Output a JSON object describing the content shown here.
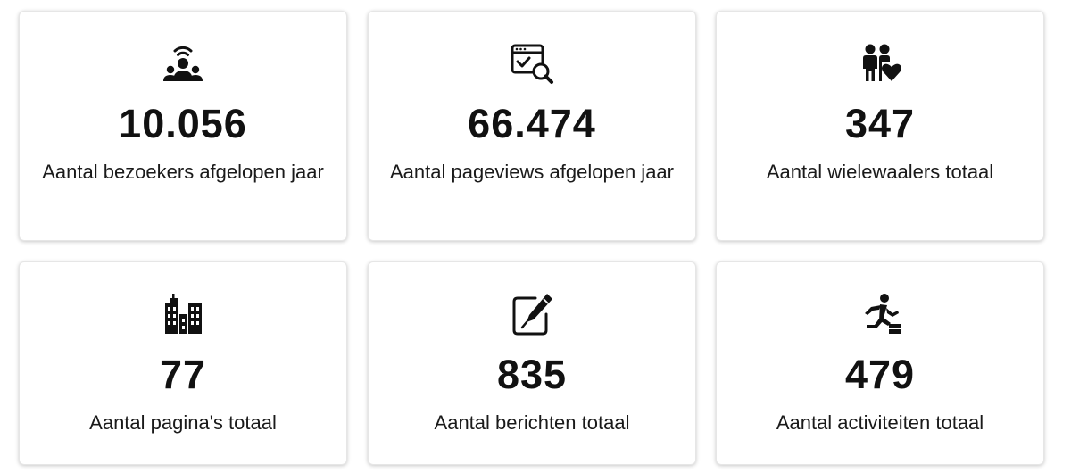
{
  "colors": {
    "text": "#111111",
    "card_background": "#ffffff",
    "card_border": "#e6e6e6"
  },
  "stats": [
    {
      "icon": "visitors-icon",
      "value": "10.056",
      "label": "Aantal bezoekers afgelopen jaar"
    },
    {
      "icon": "pageviews-icon",
      "value": "66.474",
      "label": "Aantal pageviews afgelopen jaar"
    },
    {
      "icon": "people-heart-icon",
      "value": "347",
      "label": "Aantal wielewaalers totaal"
    },
    {
      "icon": "buildings-icon",
      "value": "77",
      "label": "Aantal pagina's totaal"
    },
    {
      "icon": "edit-note-icon",
      "value": "835",
      "label": "Aantal berichten totaal"
    },
    {
      "icon": "running-person-icon",
      "value": "479",
      "label": "Aantal activiteiten totaal"
    }
  ]
}
